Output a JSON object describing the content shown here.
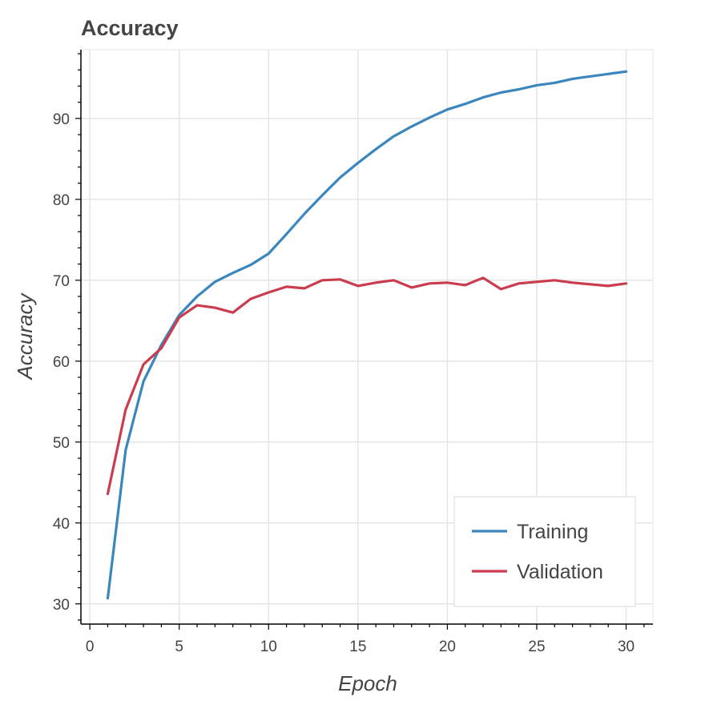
{
  "chart_data": {
    "type": "line",
    "title": "Accuracy",
    "xlabel": "Epoch",
    "ylabel": "Accuracy",
    "xlim": [
      -0.5,
      31.5
    ],
    "ylim": [
      27.5,
      98.5
    ],
    "x_ticks": [
      0,
      5,
      10,
      15,
      20,
      25,
      30
    ],
    "y_ticks": [
      30,
      40,
      50,
      60,
      70,
      80,
      90
    ],
    "x": [
      1,
      2,
      3,
      4,
      5,
      6,
      7,
      8,
      9,
      10,
      11,
      12,
      13,
      14,
      15,
      16,
      17,
      18,
      19,
      20,
      21,
      22,
      23,
      24,
      25,
      26,
      27,
      28,
      29,
      30
    ],
    "series": [
      {
        "name": "Training",
        "color": "#3a86bd",
        "values": [
          30.7,
          49.0,
          57.5,
          62.0,
          65.7,
          68.0,
          69.8,
          70.9,
          71.9,
          73.3,
          75.7,
          78.2,
          80.5,
          82.7,
          84.5,
          86.2,
          87.8,
          89.0,
          90.1,
          91.1,
          91.8,
          92.6,
          93.2,
          93.6,
          94.1,
          94.4,
          94.9,
          95.2,
          95.5,
          95.8
        ]
      },
      {
        "name": "Validation",
        "color": "#cb3c4f",
        "values": [
          43.6,
          54.0,
          59.6,
          61.6,
          65.4,
          66.9,
          66.6,
          66.0,
          67.7,
          68.5,
          69.2,
          69.0,
          70.0,
          70.1,
          69.3,
          69.7,
          70.0,
          69.1,
          69.6,
          69.7,
          69.4,
          70.3,
          68.9,
          69.6,
          69.8,
          70.0,
          69.7,
          69.5,
          69.3,
          69.6
        ]
      }
    ],
    "grid": true,
    "legend_position": "bottom-right"
  }
}
